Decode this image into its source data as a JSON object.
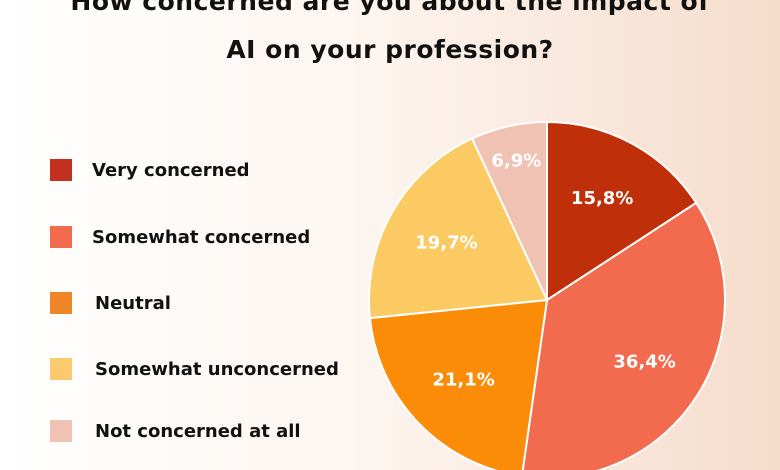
{
  "chart_data": {
    "type": "pie",
    "title": "How concerned are you about the impact of AI on your profession?",
    "title_lines": [
      "How concerned are you about the impact of",
      "AI on your profession?"
    ],
    "legend_position": "left",
    "slices": [
      {
        "name": "Very concerned",
        "value": 15.8,
        "label": "15,8%",
        "color": "#bf2f0a"
      },
      {
        "name": "Somewhat concerned",
        "value": 36.4,
        "label": "36,4%",
        "color": "#f26b4e"
      },
      {
        "name": "Neutral",
        "value": 21.1,
        "label": "21,1%",
        "color": "#fb8c07"
      },
      {
        "name": "Somewhat unconcerned",
        "value": 19.7,
        "label": "19,7%",
        "color": "#fcca62"
      },
      {
        "name": "Not concerned at all",
        "value": 6.9,
        "label": "6,9%",
        "color": "#f0c2b4"
      }
    ],
    "legend_colors": [
      "#c2311f",
      "#f26b4e",
      "#ee8526",
      "#fbca6e",
      "#f0c2b4"
    ]
  }
}
